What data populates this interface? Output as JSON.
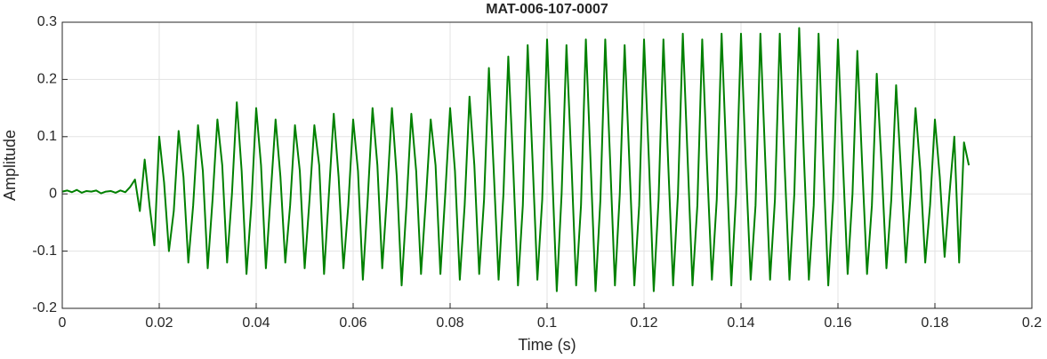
{
  "chart_data": {
    "type": "line",
    "title": "MAT-006-107-0007",
    "xlabel": "Time (s)",
    "ylabel": "Amplitude",
    "color": "#008000",
    "grid": true,
    "xlim": [
      0,
      0.2
    ],
    "xticks": [
      0,
      0.02,
      0.04,
      0.06,
      0.08,
      0.1,
      0.12,
      0.14,
      0.16,
      0.18,
      0.2
    ],
    "ylim": [
      -0.2,
      0.3
    ],
    "yticks": [
      -0.2,
      -0.1,
      0,
      0.1,
      0.2,
      0.3
    ],
    "x": [
      0,
      0.001,
      0.002,
      0.003,
      0.004,
      0.005,
      0.006,
      0.007,
      0.008,
      0.009,
      0.01,
      0.011,
      0.012,
      0.013,
      0.014,
      0.015,
      0.016,
      0.017,
      0.018,
      0.019,
      0.02,
      0.021,
      0.022,
      0.023,
      0.024,
      0.025,
      0.026,
      0.027,
      0.028,
      0.029,
      0.03,
      0.031,
      0.032,
      0.033,
      0.034,
      0.035,
      0.036,
      0.037,
      0.038,
      0.039,
      0.04,
      0.041,
      0.042,
      0.043,
      0.044,
      0.045,
      0.046,
      0.047,
      0.048,
      0.049,
      0.05,
      0.051,
      0.052,
      0.053,
      0.054,
      0.055,
      0.056,
      0.057,
      0.058,
      0.059,
      0.06,
      0.061,
      0.062,
      0.063,
      0.064,
      0.065,
      0.066,
      0.067,
      0.068,
      0.069,
      0.07,
      0.071,
      0.072,
      0.073,
      0.074,
      0.075,
      0.076,
      0.077,
      0.078,
      0.079,
      0.08,
      0.081,
      0.082,
      0.083,
      0.084,
      0.085,
      0.086,
      0.087,
      0.088,
      0.089,
      0.09,
      0.091,
      0.092,
      0.093,
      0.094,
      0.095,
      0.096,
      0.097,
      0.098,
      0.099,
      0.1,
      0.101,
      0.102,
      0.103,
      0.104,
      0.105,
      0.106,
      0.107,
      0.108,
      0.109,
      0.11,
      0.111,
      0.112,
      0.113,
      0.114,
      0.115,
      0.116,
      0.117,
      0.118,
      0.119,
      0.12,
      0.121,
      0.122,
      0.123,
      0.124,
      0.125,
      0.126,
      0.127,
      0.128,
      0.129,
      0.13,
      0.131,
      0.132,
      0.133,
      0.134,
      0.135,
      0.136,
      0.137,
      0.138,
      0.139,
      0.14,
      0.141,
      0.142,
      0.143,
      0.144,
      0.145,
      0.146,
      0.147,
      0.148,
      0.149,
      0.15,
      0.151,
      0.152,
      0.153,
      0.154,
      0.155,
      0.156,
      0.157,
      0.158,
      0.159,
      0.16,
      0.161,
      0.162,
      0.163,
      0.164,
      0.165,
      0.166,
      0.167,
      0.168,
      0.169,
      0.17,
      0.171,
      0.172,
      0.173,
      0.174,
      0.175,
      0.176,
      0.177,
      0.178,
      0.179,
      0.18,
      0.181,
      0.182,
      0.183,
      0.184,
      0.185,
      0.186,
      0.187
    ],
    "values": [
      0.004,
      0.006,
      0.003,
      0.007,
      0.002,
      0.005,
      0.004,
      0.006,
      0.001,
      0.004,
      0.005,
      0.002,
      0.006,
      0.003,
      0.012,
      0.025,
      -0.03,
      0.06,
      -0.02,
      -0.09,
      0.1,
      0.02,
      -0.1,
      -0.03,
      0.11,
      0.03,
      -0.12,
      -0.02,
      0.12,
      0.04,
      -0.13,
      -0.01,
      0.13,
      0.05,
      -0.12,
      0.0,
      0.16,
      0.04,
      -0.14,
      -0.02,
      0.15,
      0.05,
      -0.13,
      0.0,
      0.13,
      0.03,
      -0.12,
      -0.02,
      0.12,
      0.04,
      -0.13,
      -0.01,
      0.12,
      0.05,
      -0.14,
      0.0,
      0.14,
      0.03,
      -0.13,
      -0.02,
      0.13,
      0.04,
      -0.15,
      -0.01,
      0.15,
      0.05,
      -0.13,
      0.0,
      0.15,
      0.03,
      -0.16,
      -0.02,
      0.14,
      0.04,
      -0.14,
      -0.01,
      0.13,
      0.05,
      -0.14,
      0.0,
      0.15,
      0.04,
      -0.15,
      -0.02,
      0.17,
      0.05,
      -0.14,
      -0.01,
      0.22,
      0.04,
      -0.15,
      0.0,
      0.24,
      0.05,
      -0.16,
      -0.02,
      0.26,
      0.06,
      -0.15,
      -0.01,
      0.27,
      0.05,
      -0.17,
      0.0,
      0.26,
      0.06,
      -0.16,
      -0.02,
      0.27,
      0.05,
      -0.17,
      -0.01,
      0.27,
      0.06,
      -0.16,
      0.0,
      0.26,
      0.05,
      -0.16,
      -0.02,
      0.27,
      0.06,
      -0.17,
      -0.01,
      0.27,
      0.05,
      -0.16,
      0.0,
      0.28,
      0.06,
      -0.16,
      -0.02,
      0.27,
      0.05,
      -0.15,
      -0.01,
      0.28,
      0.06,
      -0.16,
      0.0,
      0.28,
      0.05,
      -0.15,
      -0.02,
      0.28,
      0.06,
      -0.15,
      -0.01,
      0.28,
      0.05,
      -0.15,
      0.0,
      0.29,
      0.06,
      -0.15,
      -0.02,
      0.28,
      0.05,
      -0.16,
      -0.01,
      0.27,
      0.06,
      -0.14,
      0.0,
      0.25,
      0.05,
      -0.14,
      -0.02,
      0.21,
      0.05,
      -0.13,
      -0.01,
      0.19,
      0.04,
      -0.12,
      0.0,
      0.15,
      0.04,
      -0.12,
      -0.02,
      0.13,
      0.03,
      -0.11,
      0.0,
      0.1,
      -0.12,
      0.09,
      0.05
    ]
  }
}
